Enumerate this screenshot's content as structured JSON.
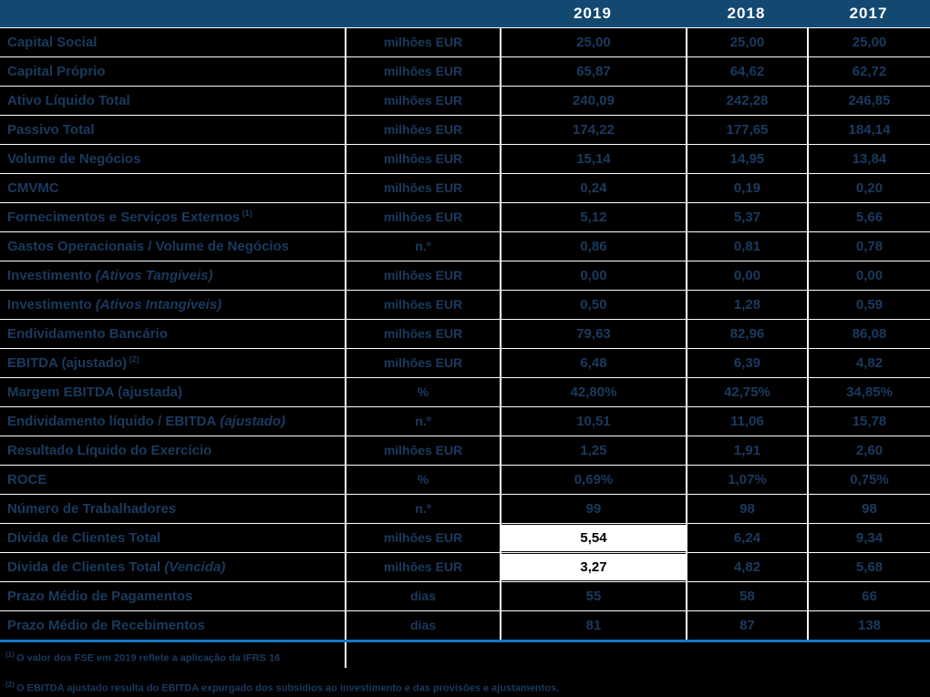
{
  "header": {
    "years": [
      "2019",
      "2018",
      "2017"
    ]
  },
  "table": {
    "rows": [
      {
        "label": "Capital Social",
        "unit": "milhões EUR",
        "values": [
          "25,00",
          "25,00",
          "25,00"
        ]
      },
      {
        "label": "Capital Próprio",
        "unit": "milhões EUR",
        "values": [
          "65,87",
          "64,62",
          "62,72"
        ]
      },
      {
        "label": "Ativo Líquido Total",
        "unit": "milhões EUR",
        "values": [
          "240,09",
          "242,28",
          "246,85"
        ]
      },
      {
        "label": "Passivo Total",
        "unit": "milhões EUR",
        "values": [
          "174,22",
          "177,65",
          "184,14"
        ]
      },
      {
        "label": "Volume de Negócios",
        "unit": "milhões EUR",
        "values": [
          "15,14",
          "14,95",
          "13,84"
        ]
      },
      {
        "label": "CMVMC",
        "unit": "milhões EUR",
        "values": [
          "0,24",
          "0,19",
          "0,20"
        ]
      },
      {
        "label": "Fornecimentos e Serviços Externos",
        "sup": "(1)",
        "unit": "milhões EUR",
        "values": [
          "5,12",
          "5,37",
          "5,66"
        ]
      },
      {
        "label": "Gastos Operacionais / Volume de Negócios",
        "unit": "n.º",
        "values": [
          "0,86",
          "0,81",
          "0,78"
        ]
      },
      {
        "label": "Investimento",
        "label_italic": "(Ativos Tangíveis)",
        "unit": "milhões EUR",
        "values": [
          "0,00",
          "0,00",
          "0,00"
        ]
      },
      {
        "label": "Investimento",
        "label_italic": "(Ativos Intangíveis)",
        "unit": "milhões EUR",
        "values": [
          "0,50",
          "1,28",
          "0,59"
        ]
      },
      {
        "label": "Endividamento Bancário",
        "unit": "milhões EUR",
        "values": [
          "79,63",
          "82,96",
          "86,08"
        ]
      },
      {
        "label": "EBITDA (ajustado)",
        "sup": "(2)",
        "unit": "milhões EUR",
        "values": [
          "6,48",
          "6,39",
          "4,82"
        ]
      },
      {
        "label": "Margem EBITDA (ajustada)",
        "unit": "%",
        "values": [
          "42,80%",
          "42,75%",
          "34,85%"
        ]
      },
      {
        "label": "Endividamento líquido / EBITDA",
        "label_italic": "(ajustado)",
        "unit": "n.º",
        "values": [
          "10,51",
          "11,06",
          "15,78"
        ]
      },
      {
        "label": "Resultado Líquido do Exercício",
        "unit": "milhões EUR",
        "values": [
          "1,25",
          "1,91",
          "2,60"
        ]
      },
      {
        "label": "ROCE",
        "unit": "%",
        "values": [
          "0,69%",
          "1,07%",
          "0,75%"
        ]
      },
      {
        "label": "Número de Trabalhadores",
        "unit": "n.º",
        "values": [
          "99",
          "98",
          "98"
        ]
      },
      {
        "label": "Dívida de Clientes Total",
        "unit": "milhões EUR",
        "values": [
          "5,54",
          "6,24",
          "9,34"
        ],
        "highlight": [
          true,
          false,
          false
        ]
      },
      {
        "label": "Dívida de Clientes Total",
        "label_italic": "(Vencida)",
        "unit": "milhões EUR",
        "values": [
          "3,27",
          "4,82",
          "5,68"
        ],
        "highlight": [
          true,
          false,
          false
        ]
      },
      {
        "label": "Prazo Médio de Pagamentos",
        "unit": "dias",
        "values": [
          "55",
          "58",
          "66"
        ]
      },
      {
        "label": "Prazo Médio de Recebimentos",
        "unit": "dias",
        "values": [
          "81",
          "87",
          "138"
        ]
      }
    ]
  },
  "footnotes": [
    {
      "marker": "(1)",
      "text": "O valor dos FSE em 2019 reflete a aplicação da IFRS 16"
    },
    {
      "marker": "(2)",
      "text": "O EBITDA ajustado resulta do EBITDA expurgado dos subsídios ao investimento e das provisões e ajustamentos."
    }
  ],
  "colors": {
    "background": "#000000",
    "header_bg": "#134971",
    "header_text": "#ffffff",
    "body_text": "#1a3a5e",
    "grid_line": "#ffffff",
    "accent_line": "#1878c8",
    "highlight_bg": "#ffffff",
    "highlight_text": "#000000"
  }
}
